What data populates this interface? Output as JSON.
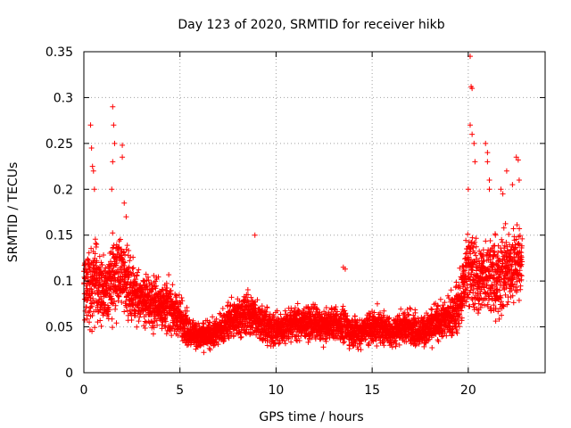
{
  "chart_data": {
    "type": "scatter",
    "title": "Day 123 of 2020, SRMTID for receiver hikb",
    "xlabel": "GPS time / hours",
    "ylabel": "SRMTID / TECUs",
    "xlim": [
      0,
      24
    ],
    "ylim": [
      0,
      0.35
    ],
    "xticks": [
      0,
      5,
      10,
      15,
      20
    ],
    "yticks": [
      0,
      0.05,
      0.1,
      0.15,
      0.2,
      0.25,
      0.3,
      0.35
    ],
    "xtick_labels": [
      "0",
      "5",
      "10",
      "15",
      "20"
    ],
    "ytick_labels": [
      "0",
      "0.05",
      "0.1",
      "0.15",
      "0.2",
      "0.25",
      "0.3",
      "0.35"
    ],
    "grid": true,
    "marker": "plus",
    "color": "#ff0000",
    "series": [
      {
        "name": "SRMTID",
        "envelope_x": [
          0,
          0.5,
          1,
          1.5,
          2,
          2.5,
          3,
          3.5,
          4,
          4.5,
          5,
          5.5,
          6,
          6.5,
          7,
          7.5,
          8,
          8.5,
          9,
          9.5,
          10,
          10.5,
          11,
          11.5,
          12,
          12.5,
          13,
          13.5,
          14,
          14.5,
          15,
          15.5,
          16,
          16.5,
          17,
          17.5,
          18,
          18.5,
          19,
          19.5,
          20,
          20.5,
          21,
          21.5,
          22,
          22.5,
          22.8
        ],
        "envelope_median": [
          0.09,
          0.1,
          0.09,
          0.1,
          0.11,
          0.09,
          0.08,
          0.075,
          0.075,
          0.07,
          0.06,
          0.045,
          0.04,
          0.04,
          0.045,
          0.055,
          0.06,
          0.065,
          0.06,
          0.05,
          0.045,
          0.05,
          0.055,
          0.055,
          0.055,
          0.05,
          0.055,
          0.05,
          0.045,
          0.045,
          0.05,
          0.05,
          0.045,
          0.05,
          0.05,
          0.045,
          0.05,
          0.055,
          0.06,
          0.07,
          0.12,
          0.1,
          0.11,
          0.1,
          0.11,
          0.12,
          0.12
        ],
        "envelope_spread": [
          0.04,
          0.05,
          0.035,
          0.05,
          0.04,
          0.035,
          0.03,
          0.03,
          0.03,
          0.03,
          0.025,
          0.018,
          0.015,
          0.015,
          0.018,
          0.02,
          0.025,
          0.025,
          0.025,
          0.02,
          0.018,
          0.02,
          0.02,
          0.02,
          0.02,
          0.018,
          0.02,
          0.02,
          0.018,
          0.018,
          0.02,
          0.02,
          0.018,
          0.02,
          0.02,
          0.018,
          0.02,
          0.02,
          0.025,
          0.03,
          0.05,
          0.04,
          0.045,
          0.045,
          0.045,
          0.045,
          0.04
        ],
        "outliers": [
          [
            0.35,
            0.27
          ],
          [
            0.4,
            0.245
          ],
          [
            0.45,
            0.225
          ],
          [
            0.5,
            0.22
          ],
          [
            0.55,
            0.2
          ],
          [
            1.5,
            0.29
          ],
          [
            1.55,
            0.27
          ],
          [
            1.6,
            0.25
          ],
          [
            1.5,
            0.23
          ],
          [
            1.45,
            0.2
          ],
          [
            2.0,
            0.248
          ],
          [
            2.0,
            0.235
          ],
          [
            2.1,
            0.185
          ],
          [
            2.2,
            0.17
          ],
          [
            8.9,
            0.15
          ],
          [
            13.5,
            0.115
          ],
          [
            13.6,
            0.113
          ],
          [
            20.1,
            0.345
          ],
          [
            20.15,
            0.312
          ],
          [
            20.2,
            0.31
          ],
          [
            20.1,
            0.27
          ],
          [
            20.2,
            0.26
          ],
          [
            20.3,
            0.25
          ],
          [
            20.35,
            0.23
          ],
          [
            20.0,
            0.2
          ],
          [
            20.9,
            0.25
          ],
          [
            21.0,
            0.24
          ],
          [
            21.0,
            0.23
          ],
          [
            21.1,
            0.21
          ],
          [
            21.1,
            0.2
          ],
          [
            22.0,
            0.22
          ],
          [
            22.3,
            0.205
          ],
          [
            22.5,
            0.235
          ],
          [
            22.6,
            0.232
          ],
          [
            22.65,
            0.21
          ],
          [
            21.7,
            0.2
          ],
          [
            21.8,
            0.195
          ]
        ]
      }
    ]
  }
}
